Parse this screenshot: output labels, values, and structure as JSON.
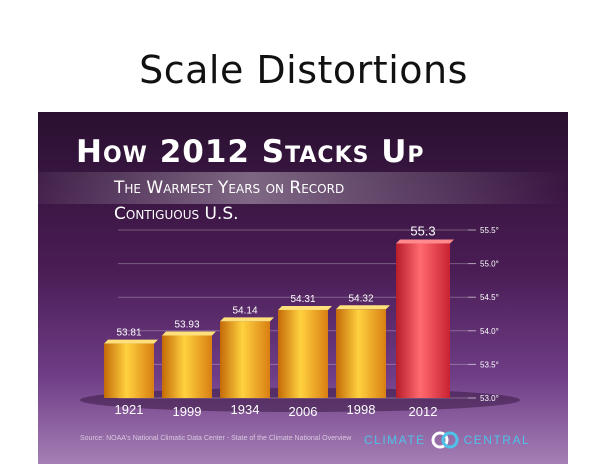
{
  "slide": {
    "title": "Scale Distortions"
  },
  "graphic": {
    "title": "How 2012 Stacks Up",
    "subtitle_line1": "The Warmest Years on Record",
    "subtitle_line2": "Contiguous U.S.",
    "source": "Source: NOAA's National Climatic Data Center - State of the Climate National Overview",
    "logo_word1": "CLIMATE",
    "logo_word2": "CENTRAL"
  },
  "colors": {
    "bar_gold": "#f5a623",
    "bar_red": "#e8303b",
    "logo_blue": "#4ec2e8"
  },
  "chart_data": {
    "type": "bar",
    "title": "How 2012 Stacks Up",
    "categories": [
      "1921",
      "1999",
      "1934",
      "2006",
      "1998",
      "2012"
    ],
    "values": [
      53.81,
      53.93,
      54.14,
      54.31,
      54.32,
      55.3
    ],
    "value_labels": [
      "53.81",
      "53.93",
      "54.14",
      "54.31",
      "54.32",
      "55.3"
    ],
    "ylim": [
      53.0,
      55.5
    ],
    "yticks": [
      53.0,
      53.5,
      54.0,
      54.5,
      55.0,
      55.5
    ],
    "ytick_labels": [
      "53.0°",
      "53.5°",
      "54.0°",
      "54.5°",
      "55.0°",
      "55.5°"
    ],
    "grid": true,
    "highlight_category": "2012"
  }
}
